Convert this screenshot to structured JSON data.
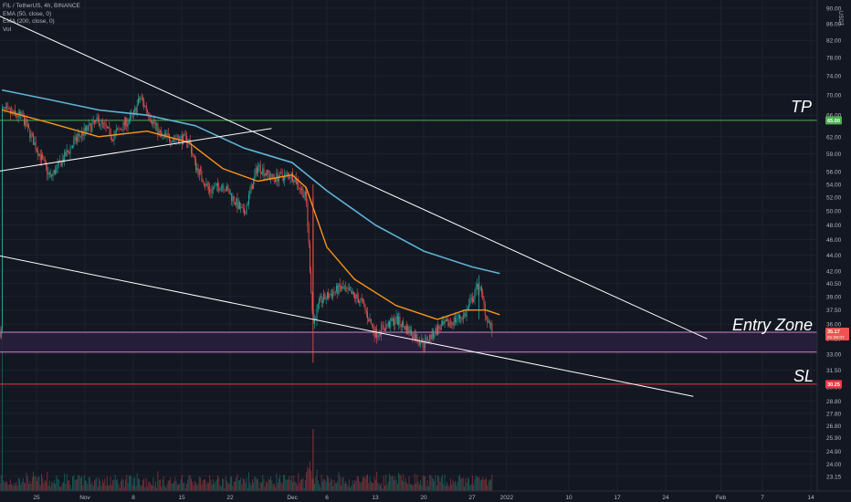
{
  "legend": {
    "symbol_line": "FIL / TetherUS, 4h, BINANCE",
    "ema50_line": "EMA (50, close, 0)",
    "ema200_line": "EMA (200, close, 0)",
    "vol_line": "Vol"
  },
  "annotations": {
    "tp": "TP",
    "entry": "Entry Zone",
    "sl": "SL"
  },
  "colors": {
    "background": "#131722",
    "up": "#26a69a",
    "down": "#ef5350",
    "ema50": "#f7931a",
    "ema200": "#5fb3d3",
    "tp_line": "#4caf50",
    "sl_line": "#f23645",
    "zone_fill": "#2a1f3d",
    "zone_border": "#c987c9",
    "trendline": "#ffffff"
  },
  "chart_data": {
    "type": "candlestick",
    "title": "FIL / TetherUS, 4h, BINANCE",
    "currency": "USDT",
    "y_scale": "log",
    "ylim": [
      22.5,
      92
    ],
    "y_ticks": [
      "90.00",
      "86.00",
      "82.00",
      "78.00",
      "74.00",
      "70.00",
      "66.00",
      "62.00",
      "59.00",
      "56.00",
      "54.00",
      "52.00",
      "50.00",
      "48.00",
      "46.00",
      "44.00",
      "42.00",
      "40.50",
      "39.00",
      "37.50",
      "36.00",
      "34.50",
      "33.00",
      "31.50",
      "30.00",
      "28.80",
      "27.80",
      "26.80",
      "25.90",
      "24.90",
      "24.00",
      "23.15"
    ],
    "x_ticks": [
      "25",
      "Nov",
      "8",
      "15",
      "22",
      "Dec",
      "6",
      "13",
      "20",
      "27",
      "2022",
      "10",
      "17",
      "24",
      "Feb",
      "7",
      "14"
    ],
    "price_path": [
      {
        "x": "Oct 20",
        "y": 67.0
      },
      {
        "x": "Oct 23",
        "y": 65.5
      },
      {
        "x": "Oct 27",
        "y": 55.0
      },
      {
        "x": "Oct 31",
        "y": 62.0
      },
      {
        "x": "Nov 3",
        "y": 65.0
      },
      {
        "x": "Nov 5",
        "y": 62.0
      },
      {
        "x": "Nov 8",
        "y": 66.0
      },
      {
        "x": "Nov 9",
        "y": 69.5
      },
      {
        "x": "Nov 12",
        "y": 62.0
      },
      {
        "x": "Nov 16",
        "y": 61.5
      },
      {
        "x": "Nov 17",
        "y": 57.0
      },
      {
        "x": "Nov 19",
        "y": 53.0
      },
      {
        "x": "Nov 21",
        "y": 54.0
      },
      {
        "x": "Nov 24",
        "y": 49.5
      },
      {
        "x": "Nov 26",
        "y": 57.0
      },
      {
        "x": "Nov 28",
        "y": 55.0
      },
      {
        "x": "Dec 1",
        "y": 55.5
      },
      {
        "x": "Dec 3",
        "y": 52.0
      },
      {
        "x": "Dec 4",
        "y": 36.0
      },
      {
        "x": "Dec 5",
        "y": 38.5
      },
      {
        "x": "Dec 8",
        "y": 40.0
      },
      {
        "x": "Dec 11",
        "y": 38.5
      },
      {
        "x": "Dec 13",
        "y": 35.0
      },
      {
        "x": "Dec 16",
        "y": 36.5
      },
      {
        "x": "Dec 20",
        "y": 34.0
      },
      {
        "x": "Dec 22",
        "y": 35.5
      },
      {
        "x": "Dec 26",
        "y": 37.0
      },
      {
        "x": "Dec 28",
        "y": 40.5
      },
      {
        "x": "Dec 29",
        "y": 37.0
      },
      {
        "x": "Dec 30",
        "y": 35.2
      }
    ],
    "ema50": [
      {
        "x": "Oct 20",
        "y": 67.0
      },
      {
        "x": "Oct 27",
        "y": 64.5
      },
      {
        "x": "Nov 3",
        "y": 62.0
      },
      {
        "x": "Nov 10",
        "y": 63.0
      },
      {
        "x": "Nov 16",
        "y": 61.0
      },
      {
        "x": "Nov 21",
        "y": 56.5
      },
      {
        "x": "Nov 26",
        "y": 54.5
      },
      {
        "x": "Dec 1",
        "y": 55.5
      },
      {
        "x": "Dec 3",
        "y": 53.5
      },
      {
        "x": "Dec 6",
        "y": 45.0
      },
      {
        "x": "Dec 10",
        "y": 41.0
      },
      {
        "x": "Dec 16",
        "y": 38.0
      },
      {
        "x": "Dec 22",
        "y": 36.5
      },
      {
        "x": "Dec 26",
        "y": 37.5
      },
      {
        "x": "Dec 29",
        "y": 37.5
      },
      {
        "x": "Dec 31",
        "y": 37.0
      }
    ],
    "ema200": [
      {
        "x": "Oct 20",
        "y": 71.0
      },
      {
        "x": "Oct 27",
        "y": 69.0
      },
      {
        "x": "Nov 3",
        "y": 67.0
      },
      {
        "x": "Nov 10",
        "y": 66.0
      },
      {
        "x": "Nov 17",
        "y": 64.0
      },
      {
        "x": "Nov 24",
        "y": 60.0
      },
      {
        "x": "Dec 1",
        "y": 57.5
      },
      {
        "x": "Dec 6",
        "y": 53.0
      },
      {
        "x": "Dec 13",
        "y": 48.0
      },
      {
        "x": "Dec 20",
        "y": 44.5
      },
      {
        "x": "Dec 27",
        "y": 42.5
      },
      {
        "x": "Dec 31",
        "y": 41.7
      }
    ],
    "levels": {
      "tp": 65.0,
      "entry_zone_top": 35.17,
      "entry_zone_bottom": 33.2,
      "sl": 30.25,
      "last_price": 35.17,
      "last_price_label": "35.17",
      "countdown": "01:26:07",
      "tp_label": "65.00",
      "sl_label": "30.25"
    },
    "trendlines": [
      {
        "from": {
          "x": "Oct 19",
          "y": 88.5
        },
        "to": {
          "x": "Jan 30",
          "y": 34.5
        }
      },
      {
        "from": {
          "x": "Oct 19",
          "y": 56.0
        },
        "to": {
          "x": "Nov 28",
          "y": 63.5
        }
      },
      {
        "from": {
          "x": "Oct 19",
          "y": 44.0
        },
        "to": {
          "x": "Jan 28",
          "y": 29.2
        }
      }
    ]
  }
}
